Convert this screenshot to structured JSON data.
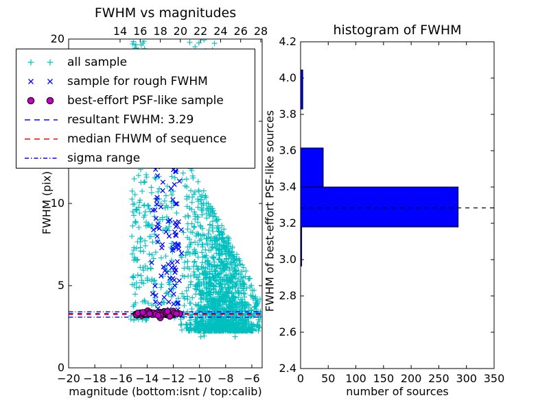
{
  "figure": {
    "background": "#ffffff"
  },
  "colors": {
    "all_sample": "#00bfbf",
    "rough_sample": "#0000ff",
    "psf_sample": "#bf00bf",
    "resultant_line": "#0000ff",
    "median_line": "#ff0000",
    "sigma_line": "#0000ff",
    "hist_bar": "#0000ff",
    "hist_dashed_line": "#000000",
    "frame": "#000000"
  },
  "legend": {
    "entries": [
      {
        "marker": "plus",
        "color": "#00bfbf",
        "label": "all sample"
      },
      {
        "marker": "cross",
        "color": "#0000ff",
        "label": "sample for rough FWHM"
      },
      {
        "marker": "circle",
        "color": "#bf00bf",
        "label": "best-effort PSF-like sample"
      },
      {
        "marker": "dashed-line",
        "color": "#0000ff",
        "label": "resultant FWHM: 3.29"
      },
      {
        "marker": "dashed-line",
        "color": "#ff0000",
        "label": "median FHWM of sequence"
      },
      {
        "marker": "dashdot-line",
        "color": "#0000ff",
        "label": "sigma range"
      }
    ]
  },
  "left_plot": {
    "title": "FWHM vs magnitudes",
    "xlabel": "magnitude (bottom:isnt / top:calib)",
    "ylabel": "FWHM (pix)",
    "xticks": {
      "values": [
        -20,
        -18,
        -16,
        -14,
        -12,
        -10,
        -8,
        -6
      ],
      "labels": [
        "−20",
        "−18",
        "−16",
        "−14",
        "−12",
        "−10",
        "−8",
        "−6"
      ]
    },
    "yticks": {
      "values": [
        0,
        5,
        10,
        15,
        20
      ],
      "labels": [
        "0",
        "5",
        "10",
        "15",
        "20"
      ]
    },
    "top_xticks": {
      "values": [
        14,
        16,
        18,
        20,
        22,
        24,
        26,
        28
      ],
      "labels": [
        "14",
        "16",
        "18",
        "20",
        "22",
        "24",
        "26",
        "28"
      ]
    }
  },
  "right_plot": {
    "title": "histogram of FWHM",
    "xlabel": "number of sources",
    "ylabel": "FWHM of best-effort PSF-like sources",
    "xticks": {
      "values": [
        0,
        50,
        100,
        150,
        200,
        250,
        300,
        350
      ],
      "labels": [
        "0",
        "50",
        "100",
        "150",
        "200",
        "250",
        "300",
        "350"
      ]
    },
    "yticks": {
      "values": [
        2.4,
        2.6,
        2.8,
        3.0,
        3.2,
        3.4,
        3.6,
        3.8,
        4.0,
        4.2
      ],
      "labels": [
        "2.4",
        "2.6",
        "2.8",
        "3.0",
        "3.2",
        "3.4",
        "3.6",
        "3.8",
        "4.0",
        "4.2"
      ]
    }
  },
  "chart_data": [
    {
      "type": "scatter",
      "title": "FWHM vs magnitudes",
      "xlabel": "magnitude (bottom:isnt / top:calib)",
      "ylabel": "FWHM (pix)",
      "xlim": [
        -20,
        -5.21
      ],
      "ylim": [
        0,
        20
      ],
      "top_axis_xlim": [
        8.88,
        28.15
      ],
      "grid": false,
      "seed": 7,
      "clusters": [
        {
          "name": "all-sample-column",
          "series": "all sample",
          "type": "column",
          "marker": "plus",
          "color": "#00bfbf",
          "n": 180,
          "x": [
            -15.25,
            -13.85
          ],
          "y": [
            2.9,
            20.0
          ],
          "exp": 1.5
        },
        {
          "name": "all-sample-mid",
          "series": "all sample",
          "type": "column",
          "marker": "plus",
          "color": "#00bfbf",
          "n": 120,
          "x": [
            -13.85,
            -11.6
          ],
          "y": [
            3.0,
            13.5
          ],
          "exp": 1.35
        },
        {
          "name": "all-sample-cloud",
          "series": "all sample",
          "type": "cloud",
          "marker": "plus",
          "color": "#00bfbf",
          "n": 1600,
          "x": [
            -11.45,
            -5.3
          ],
          "x_mean": -8.4,
          "x_sd": 1.4,
          "y_base": 2.25,
          "y_top_left": 13.5,
          "y_top_right": 4.2,
          "exp": 2.1
        },
        {
          "name": "all-sample-high-tail",
          "series": "all sample",
          "type": "column",
          "marker": "plus",
          "color": "#00bfbf",
          "n": 85,
          "x": [
            -11.6,
            -6.5
          ],
          "y": [
            13.0,
            20.35
          ],
          "exp": 1.4
        },
        {
          "name": "all-sample-low-outliers",
          "series": "all sample",
          "type": "column",
          "marker": "plus",
          "color": "#00bfbf",
          "n": 7,
          "x": [
            -10.2,
            -6.6
          ],
          "y": [
            1.7,
            2.6
          ],
          "exp": 1.0
        },
        {
          "name": "rough-fwhm-strand-1",
          "series": "sample for rough FWHM",
          "type": "strand",
          "marker": "cross",
          "color": "#0000ff",
          "n": 36,
          "cx": -13.15,
          "jitter": 0.22,
          "y": [
            3.15,
            13.6
          ],
          "exp": 1.15
        },
        {
          "name": "rough-fwhm-strand-2",
          "series": "sample for rough FWHM",
          "type": "strand",
          "marker": "cross",
          "color": "#0000ff",
          "n": 52,
          "cx": -11.93,
          "jitter": 0.27,
          "y": [
            3.15,
            13.2
          ],
          "exp": 1.2
        },
        {
          "name": "psf-like-sample",
          "series": "best-effort PSF-like sample",
          "type": "hline",
          "marker": "circle",
          "color": "#bf00bf",
          "edge_color": "#000000",
          "n": 60,
          "x": [
            -14.85,
            -11.5
          ],
          "y_mean": 3.29,
          "y_sd": 0.09,
          "y_clip": [
            3.0,
            3.6
          ]
        }
      ],
      "lines": [
        {
          "name": "sigma-range-upper",
          "y": 3.41,
          "color": "#0000ff",
          "style": "dashdot",
          "label": "sigma range"
        },
        {
          "name": "resultant-fwhm",
          "y": 3.3,
          "color": "#0000ff",
          "style": "dashed",
          "label": "resultant FWHM: 3.29",
          "value": 3.29
        },
        {
          "name": "median-fwhm",
          "y": 3.25,
          "color": "#ff0000",
          "style": "dashed",
          "label": "median FHWM of sequence"
        },
        {
          "name": "sigma-range-lower",
          "y": 3.08,
          "color": "#0000ff",
          "style": "dashdot",
          "label": "sigma range"
        }
      ]
    },
    {
      "type": "barh",
      "title": "histogram of FWHM",
      "xlabel": "number of sources",
      "ylabel": "FWHM of best-effort PSF-like sources",
      "xlim": [
        0,
        350
      ],
      "ylim": [
        2.4,
        4.2
      ],
      "grid": false,
      "bar_color": "#0000ff",
      "bar_edge_color": "#000000",
      "bins": [
        {
          "from": 2.965,
          "to": 3.18,
          "count": 2
        },
        {
          "from": 3.18,
          "to": 3.4,
          "count": 285
        },
        {
          "from": 3.4,
          "to": 3.615,
          "count": 41
        },
        {
          "from": 3.615,
          "to": 3.83,
          "count": 0
        },
        {
          "from": 3.83,
          "to": 4.045,
          "count": 4
        }
      ],
      "dashed_line_y": 3.285
    }
  ]
}
